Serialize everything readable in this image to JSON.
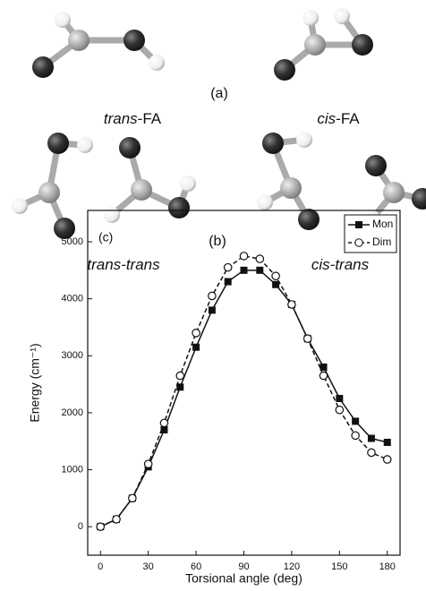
{
  "figure": {
    "panel_a": "(a)",
    "panel_b": "(b)",
    "labels": [
      {
        "italic": "trans",
        "rest": "-FA"
      },
      {
        "italic": "cis",
        "rest": "-FA"
      },
      {
        "italic": "trans-trans",
        "rest": ""
      },
      {
        "italic": "cis-trans",
        "rest": ""
      }
    ]
  },
  "chart_data": {
    "type": "line",
    "annotation": "(c)",
    "xlabel": "Torsional angle  (deg)",
    "ylabel": "Energy  (cm⁻¹)",
    "x": [
      0,
      10,
      20,
      30,
      40,
      50,
      60,
      70,
      80,
      90,
      100,
      110,
      120,
      130,
      140,
      150,
      160,
      170,
      180
    ],
    "series": [
      {
        "name": "Mon",
        "color": "#111111",
        "marker": "square",
        "dash": false,
        "values": [
          0,
          130,
          500,
          1050,
          1700,
          2450,
          3150,
          3800,
          4300,
          4500,
          4500,
          4250,
          3900,
          3300,
          2800,
          2250,
          1850,
          1550,
          1480
        ]
      },
      {
        "name": "Dim",
        "color": "#111111",
        "marker": "open-circle",
        "dash": true,
        "values": [
          0,
          130,
          500,
          1100,
          1820,
          2650,
          3400,
          4050,
          4550,
          4750,
          4700,
          4400,
          3900,
          3300,
          2650,
          2050,
          1600,
          1300,
          1180
        ]
      }
    ],
    "xlim": [
      -8,
      188
    ],
    "xticks": [
      0,
      30,
      60,
      90,
      120,
      150,
      180
    ],
    "ylim": [
      -500,
      5550
    ],
    "yticks": [
      0,
      1000,
      2000,
      3000,
      4000,
      5000
    ],
    "legend": "upper-right"
  }
}
